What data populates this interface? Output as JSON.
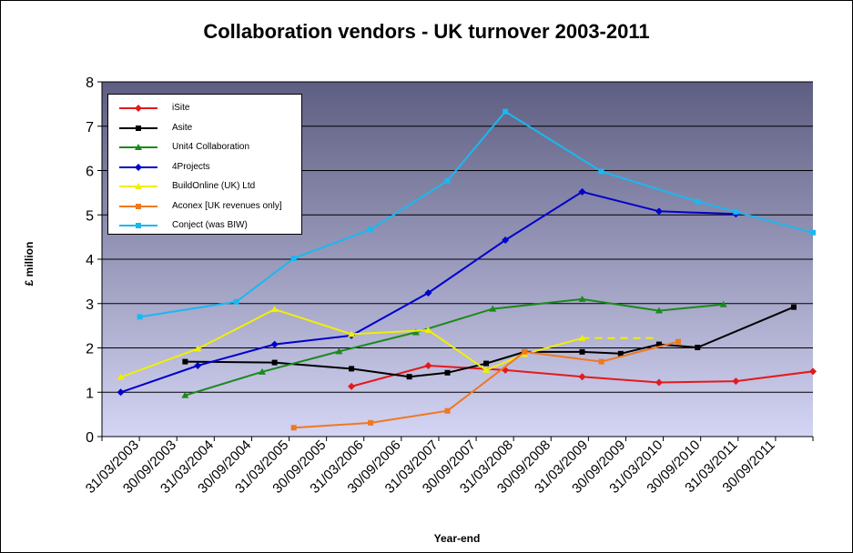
{
  "chart_data": {
    "type": "line",
    "title": "Collaboration vendors - UK turnover 2003-2011",
    "xlabel": "Year-end",
    "ylabel": "£ million",
    "ylim": [
      0,
      8
    ],
    "yticks": [
      "0",
      "1",
      "2",
      "3",
      "4",
      "5",
      "6",
      "7",
      "8"
    ],
    "grid": "horizontal",
    "legend_position": "top-left",
    "x_tick_labels": [
      "31/03/2003",
      "30/09/2003",
      "31/03/2004",
      "30/09/2004",
      "31/03/2005",
      "30/09/2005",
      "31/03/2006",
      "30/09/2006",
      "31/03/2007",
      "30/09/2007",
      "31/03/2008",
      "30/09/2008",
      "31/03/2009",
      "30/09/2009",
      "31/03/2010",
      "30/09/2010",
      "31/03/2011",
      "30/09/2011"
    ],
    "x_range": [
      "2003-01-01",
      "2012-03-31"
    ],
    "series": [
      {
        "name": "iSite",
        "color": "#e31a1c",
        "marker": "diamond",
        "points": [
          [
            "2006-03-31",
            1.13
          ],
          [
            "2007-03-31",
            1.6
          ],
          [
            "2008-03-31",
            1.5
          ],
          [
            "2009-03-31",
            1.35
          ],
          [
            "2010-03-31",
            1.22
          ],
          [
            "2011-03-31",
            1.25
          ],
          [
            "2012-03-31",
            1.47
          ]
        ]
      },
      {
        "name": "Asite",
        "color": "#000000",
        "marker": "square",
        "points": [
          [
            "2004-01-31",
            1.69
          ],
          [
            "2005-03-31",
            1.67
          ],
          [
            "2006-03-31",
            1.53
          ],
          [
            "2006-12-31",
            1.35
          ],
          [
            "2007-06-30",
            1.44
          ],
          [
            "2007-12-31",
            1.65
          ],
          [
            "2008-06-30",
            1.91
          ],
          [
            "2009-03-31",
            1.91
          ],
          [
            "2009-09-30",
            1.87
          ],
          [
            "2010-03-31",
            2.08
          ],
          [
            "2010-09-30",
            2.01
          ],
          [
            "2011-12-31",
            2.92
          ]
        ]
      },
      {
        "name": "Unit4 Collaboration",
        "color": "#1a8a1a",
        "marker": "triangle",
        "points": [
          [
            "2004-01-31",
            0.93
          ],
          [
            "2005-01-31",
            1.46
          ],
          [
            "2006-01-31",
            1.92
          ],
          [
            "2007-01-31",
            2.35
          ],
          [
            "2008-01-31",
            2.88
          ],
          [
            "2009-03-31",
            3.1
          ],
          [
            "2010-03-31",
            2.84
          ],
          [
            "2011-01-31",
            2.98
          ]
        ]
      },
      {
        "name": "4Projects",
        "color": "#0000cc",
        "marker": "diamond",
        "points": [
          [
            "2003-03-31",
            1.0
          ],
          [
            "2004-03-31",
            1.6
          ],
          [
            "2005-03-31",
            2.08
          ],
          [
            "2006-03-31",
            2.28
          ],
          [
            "2007-03-31",
            3.24
          ],
          [
            "2008-03-31",
            4.43
          ],
          [
            "2009-03-31",
            5.52
          ],
          [
            "2010-03-31",
            5.08
          ],
          [
            "2011-03-31",
            5.02
          ]
        ]
      },
      {
        "name": "BuildOnline (UK) Ltd",
        "color": "#f0f000",
        "marker": "triangle",
        "points": [
          [
            "2003-03-31",
            1.34
          ],
          [
            "2004-03-31",
            1.98
          ],
          [
            "2005-03-31",
            2.87
          ],
          [
            "2006-03-31",
            2.31
          ],
          [
            "2007-03-31",
            2.4
          ],
          [
            "2007-12-31",
            1.5
          ],
          [
            "2008-06-30",
            1.86
          ],
          [
            "2009-03-31",
            2.22
          ]
        ],
        "dashed_extension": [
          [
            "2009-03-31",
            2.22
          ],
          [
            "2010-03-31",
            2.22
          ]
        ]
      },
      {
        "name": "Aconex [UK revenues only]",
        "color": "#f07820",
        "marker": "square",
        "points": [
          [
            "2005-06-30",
            0.2
          ],
          [
            "2006-06-30",
            0.31
          ],
          [
            "2007-06-30",
            0.58
          ],
          [
            "2008-06-30",
            1.91
          ],
          [
            "2009-06-30",
            1.69
          ],
          [
            "2010-06-30",
            2.14
          ]
        ]
      },
      {
        "name": "Conject (was BIW)",
        "color": "#1ab8f0",
        "marker": "square",
        "points": [
          [
            "2003-06-30",
            2.7
          ],
          [
            "2004-09-30",
            3.04
          ],
          [
            "2005-06-30",
            4.02
          ],
          [
            "2006-06-30",
            4.67
          ],
          [
            "2007-06-30",
            5.77
          ],
          [
            "2008-03-31",
            7.33
          ],
          [
            "2009-06-30",
            5.98
          ],
          [
            "2010-09-30",
            5.3
          ],
          [
            "2011-03-31",
            5.07
          ],
          [
            "2012-03-31",
            4.6
          ]
        ]
      }
    ]
  }
}
